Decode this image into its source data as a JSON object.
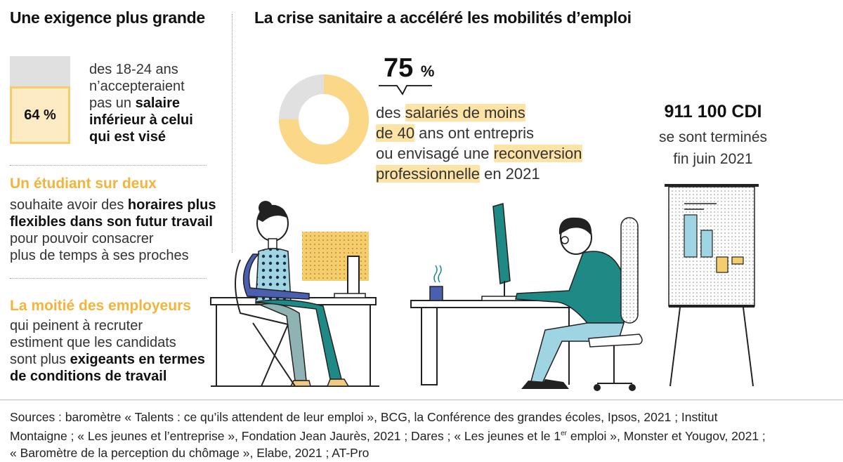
{
  "left": {
    "title": "Une exigence plus grande",
    "stat1": {
      "value": "64 %",
      "fraction": 0.64,
      "text_plain1": "des 18-24 ans",
      "text_plain2": "n’accepteraient",
      "text_plain3": "pas un ",
      "text_bold1": "salaire",
      "text_bold2": "inférieur à celui",
      "text_bold3": "qui est visé"
    },
    "stat2": {
      "heading": "Un étudiant sur deux",
      "line1_plain": "souhaite avoir des ",
      "line1_bold": "horaires plus",
      "line2_bold": "flexibles dans son futur travail",
      "line3": "pour pouvoir consacrer",
      "line4": "plus de temps à ses proches"
    },
    "stat3": {
      "heading": "La moitié des employeurs",
      "line1": "qui peinent à recruter",
      "line2": "estiment que les candidats",
      "line3_plain": "sont plus ",
      "line3_bold": "exigeants en termes",
      "line4_bold": "de conditions de travail"
    }
  },
  "right": {
    "title": "La crise sanitaire a accéléré les mobilités d’emploi",
    "donut": {
      "value": "75",
      "unit": "%",
      "fraction": 0.75,
      "line1_a": "des ",
      "line1_hl": "salariés de moins",
      "line2_hl": "de 40",
      "line2_b": " ans ont entrepris",
      "line3_a": "ou envisagé une ",
      "line3_hl": "reconversion",
      "line4_hl": "professionnelle",
      "line4_b": " en 2021"
    },
    "cdi": {
      "value": "911 100 CDI",
      "line1": "se sont terminés",
      "line2": "fin juin 2021"
    }
  },
  "sources": {
    "line1": "Sources : baromètre « Talents : ce qu’ils attendent de leur emploi », BCG, la Conférence des grandes écoles, Ipsos, 2021 ; Institut",
    "line2_a": "Montaigne ; « Les jeunes et l’entreprise », Fondation Jean Jaurès, 2021 ; Dares ; « Les jeunes et le 1",
    "line2_sup": "er",
    "line2_b": " emploi », Monster et Yougov, 2021 ;",
    "line3": "« Baromètre de la perception du chômage », Elabe, 2021 ; AT-Pro"
  },
  "colors": {
    "accent": "#f2b43a",
    "highlight": "#fde4a6",
    "grey": "#e0e0e0",
    "teal": "#1f8a85",
    "blue": "#4b5fb0",
    "lightblue": "#9fd4e3"
  }
}
